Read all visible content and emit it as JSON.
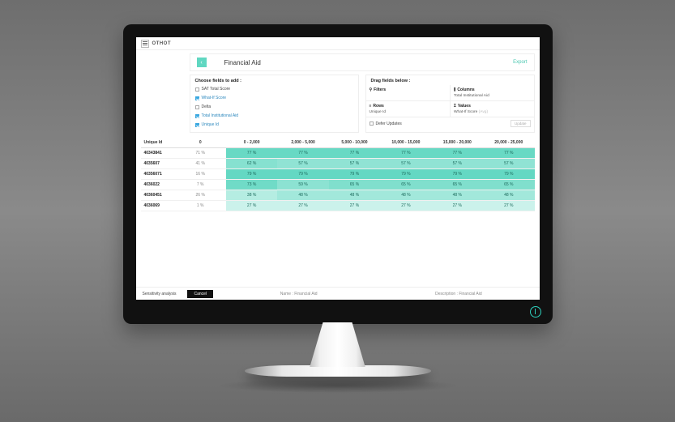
{
  "brand": "OTHOT",
  "header": {
    "title": "Financial Aid",
    "export_label": "Export"
  },
  "fields_panel": {
    "heading": "Choose fields to add :",
    "items": [
      {
        "label": "SAT Total Score",
        "checked": false
      },
      {
        "label": "What-If Score",
        "checked": true
      },
      {
        "label": "Delta",
        "checked": false
      },
      {
        "label": "Total Institutional Aid",
        "checked": true
      },
      {
        "label": "Unique Id",
        "checked": true
      }
    ]
  },
  "drag_panel": {
    "heading": "Drag fields below :",
    "filters": {
      "label": "Filters",
      "glyph": "⚲",
      "value": ""
    },
    "columns": {
      "label": "Columns",
      "glyph": "⫼",
      "value": "Total Institutional Aid"
    },
    "rows": {
      "label": "Rows",
      "glyph": "≡",
      "value": "Unique Id"
    },
    "values": {
      "label": "Values",
      "glyph": "Σ",
      "value": "What-If Score",
      "hint": "(Avg)"
    },
    "defer_label": "Defer Updates",
    "update_label": "Update"
  },
  "table": {
    "id_header": "Unique Id",
    "columns": [
      "0",
      "0 - 2,000",
      "2,000 - 5,000",
      "5,000 - 10,000",
      "10,000 - 15,000",
      "15,000 - 20,000",
      "20,000 - 25,000"
    ],
    "rows": [
      {
        "id": "40343841",
        "cells": [
          "71 %",
          "77 %",
          "77 %",
          "77 %",
          "77 %",
          "77 %",
          "77 %"
        ]
      },
      {
        "id": "4035607",
        "cells": [
          "41 %",
          "62 %",
          "57 %",
          "57 %",
          "57 %",
          "57 %",
          "57 %"
        ]
      },
      {
        "id": "40356071",
        "cells": [
          "16 %",
          "79 %",
          "79 %",
          "79 %",
          "79 %",
          "79 %",
          "79 %"
        ]
      },
      {
        "id": "4036022",
        "cells": [
          "7 %",
          "73 %",
          "59 %",
          "65 %",
          "65 %",
          "65 %",
          "65 %"
        ]
      },
      {
        "id": "40360451",
        "cells": [
          "26 %",
          "38 %",
          "48 %",
          "48 %",
          "48 %",
          "48 %",
          "48 %"
        ]
      },
      {
        "id": "4036069",
        "cells": [
          "1 %",
          "27 %",
          "27 %",
          "27 %",
          "27 %",
          "27 %",
          "27 %"
        ]
      }
    ],
    "heat": {
      "min": 1,
      "max": 81,
      "low_color": "#ffffff",
      "high_color": "#60d7c1",
      "plain_first_col": true
    }
  },
  "footer": {
    "title": "Sensitivity analysis",
    "cancel_label": "Cancel",
    "name_label": "Name :",
    "name_value": "Financial Aid",
    "desc_label": "Description :",
    "desc_value": "Financial Aid"
  },
  "colors": {
    "accent": "#60d7c1",
    "link": "#4ac7b0",
    "checkbox": "#3aa8e0",
    "text": "#333333"
  }
}
